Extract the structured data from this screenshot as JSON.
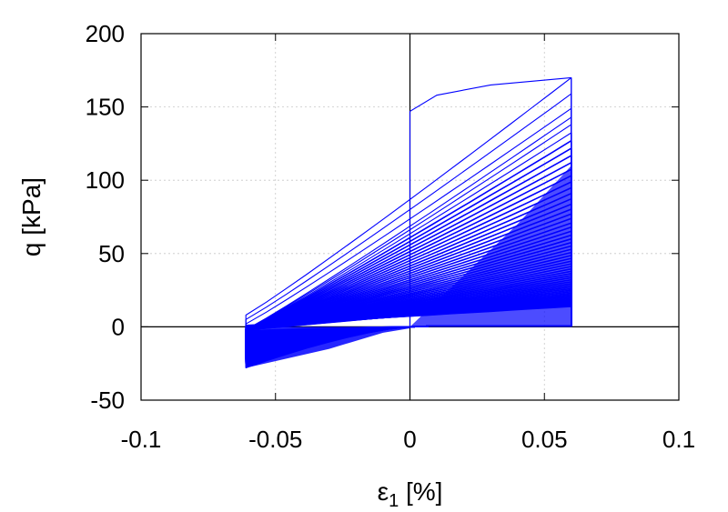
{
  "chart_data": {
    "type": "line",
    "title": "",
    "xlabel": "ε",
    "xlabel_sub": "1",
    "xlabel_unit": " [%]",
    "ylabel": "q [kPa]",
    "xlim": [
      -0.1,
      0.1
    ],
    "ylim": [
      -50,
      200
    ],
    "x_ticks": [
      -0.1,
      -0.05,
      0,
      0.05,
      0.1
    ],
    "x_tick_labels": [
      "-0.1",
      "-0.05",
      "0",
      "0.05",
      "0.1"
    ],
    "y_ticks": [
      -50,
      0,
      50,
      100,
      150,
      200
    ],
    "y_tick_labels": [
      "-50",
      "0",
      "50",
      "100",
      "150",
      "200"
    ],
    "grid": true,
    "zero_lines": true,
    "legend": "none",
    "series_color": "#0000ff",
    "series": [
      {
        "description": "cyclic stress-strain loops, strain amplitude ±0.06%, peak q decaying each cycle",
        "cycles": 60,
        "strain_amplitude": [
          -0.061,
          0.06
        ],
        "initial_peak_q": 170,
        "initial_loading_path": [
          [
            0,
            0
          ],
          [
            0,
            147
          ],
          [
            0.01,
            158
          ],
          [
            0.03,
            165
          ],
          [
            0.06,
            170
          ]
        ],
        "first_cycle_peaks": [
          170,
          159,
          149,
          143,
          138
        ],
        "extension_min_q": -28
      }
    ]
  }
}
